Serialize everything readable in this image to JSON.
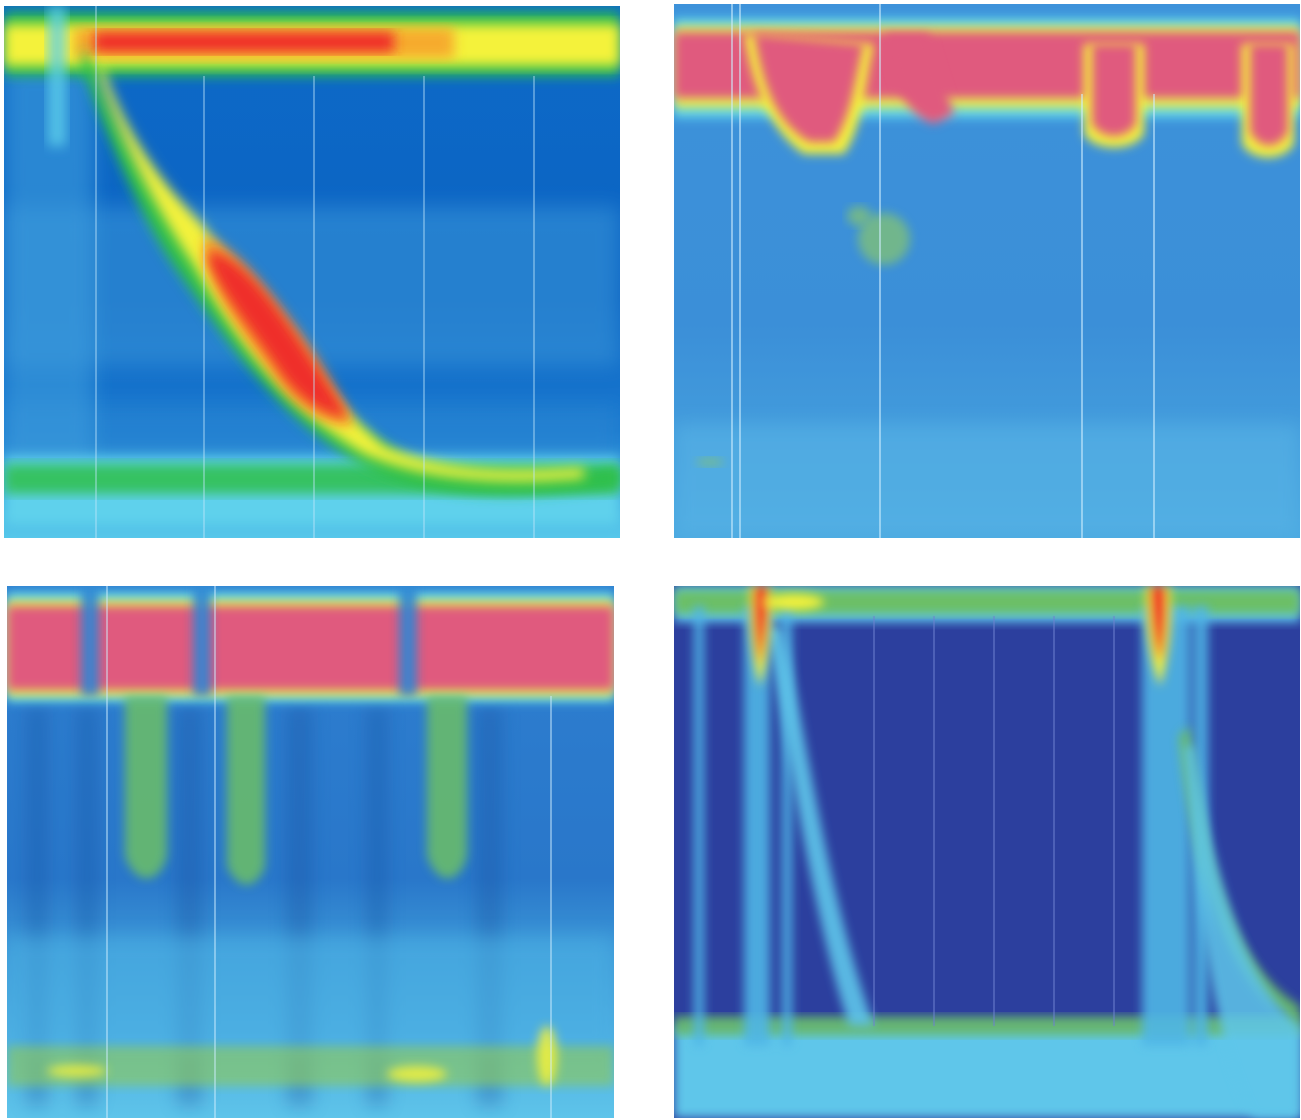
{
  "image": {
    "panels": [
      {
        "id": "top-left",
        "description_kind": "pressure-topography"
      },
      {
        "id": "top-right",
        "description_kind": "pressure-topography"
      },
      {
        "id": "bottom-left",
        "description_kind": "pressure-topography"
      },
      {
        "id": "bottom-right",
        "description_kind": "pressure-topography"
      }
    ],
    "palette": {
      "deep_blue": "#0a5fc4",
      "mid_blue": "#2f86d4",
      "light_blue": "#4fb6e6",
      "cyan": "#5fd1ec",
      "green": "#2fbf4a",
      "yellow": "#f4f23a",
      "orange": "#f79a2c",
      "red": "#ef2f2a",
      "pink": "#e05a7e",
      "navy": "#2c3f9e"
    }
  }
}
